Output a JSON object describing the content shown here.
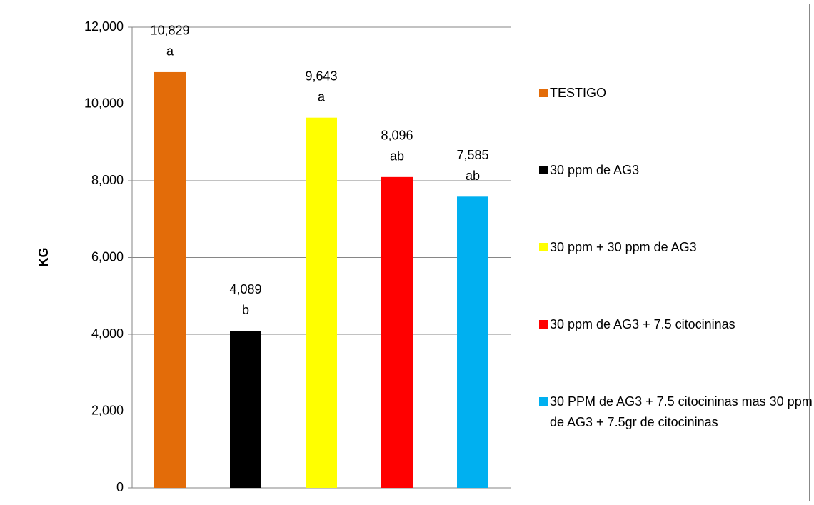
{
  "chart_data": {
    "type": "bar",
    "ylabel": "KG",
    "categories": [
      null
    ],
    "series": [
      {
        "name": "TESTIGO",
        "color": "#e36c09",
        "values": [
          10829
        ],
        "value_labels": [
          "10,829"
        ],
        "letter": "a"
      },
      {
        "name": "30 ppm de AG3",
        "color": "#000000",
        "values": [
          4089
        ],
        "value_labels": [
          "4,089"
        ],
        "letter": "b"
      },
      {
        "name": "30 ppm + 30 ppm de AG3",
        "color": "#ffff00",
        "values": [
          9643
        ],
        "value_labels": [
          "9,643"
        ],
        "letter": "a"
      },
      {
        "name": "30 ppm de AG3 + 7.5 citocininas",
        "color": "#ff0000",
        "values": [
          8096
        ],
        "value_labels": [
          "8,096"
        ],
        "letter": "ab"
      },
      {
        "name": "30 PPM de AG3 + 7.5 citocininas mas 30 ppm de AG3 + 7.5gr de citocininas",
        "color": "#00b0f0",
        "values": [
          7585
        ],
        "value_labels": [
          "7,585"
        ],
        "letter": "ab"
      }
    ],
    "ylim": [
      0,
      12000
    ],
    "yticks": [
      0,
      {
        "value": 2000,
        "label": "2,000"
      },
      {
        "value": 4000,
        "label": "4,000"
      },
      {
        "value": 6000,
        "label": "6,000"
      },
      {
        "value": 8000,
        "label": "8,000"
      },
      {
        "value": 10000,
        "label": "10,000"
      },
      {
        "value": 12000,
        "label": "12,000"
      }
    ],
    "grid": true,
    "legend": "right"
  }
}
